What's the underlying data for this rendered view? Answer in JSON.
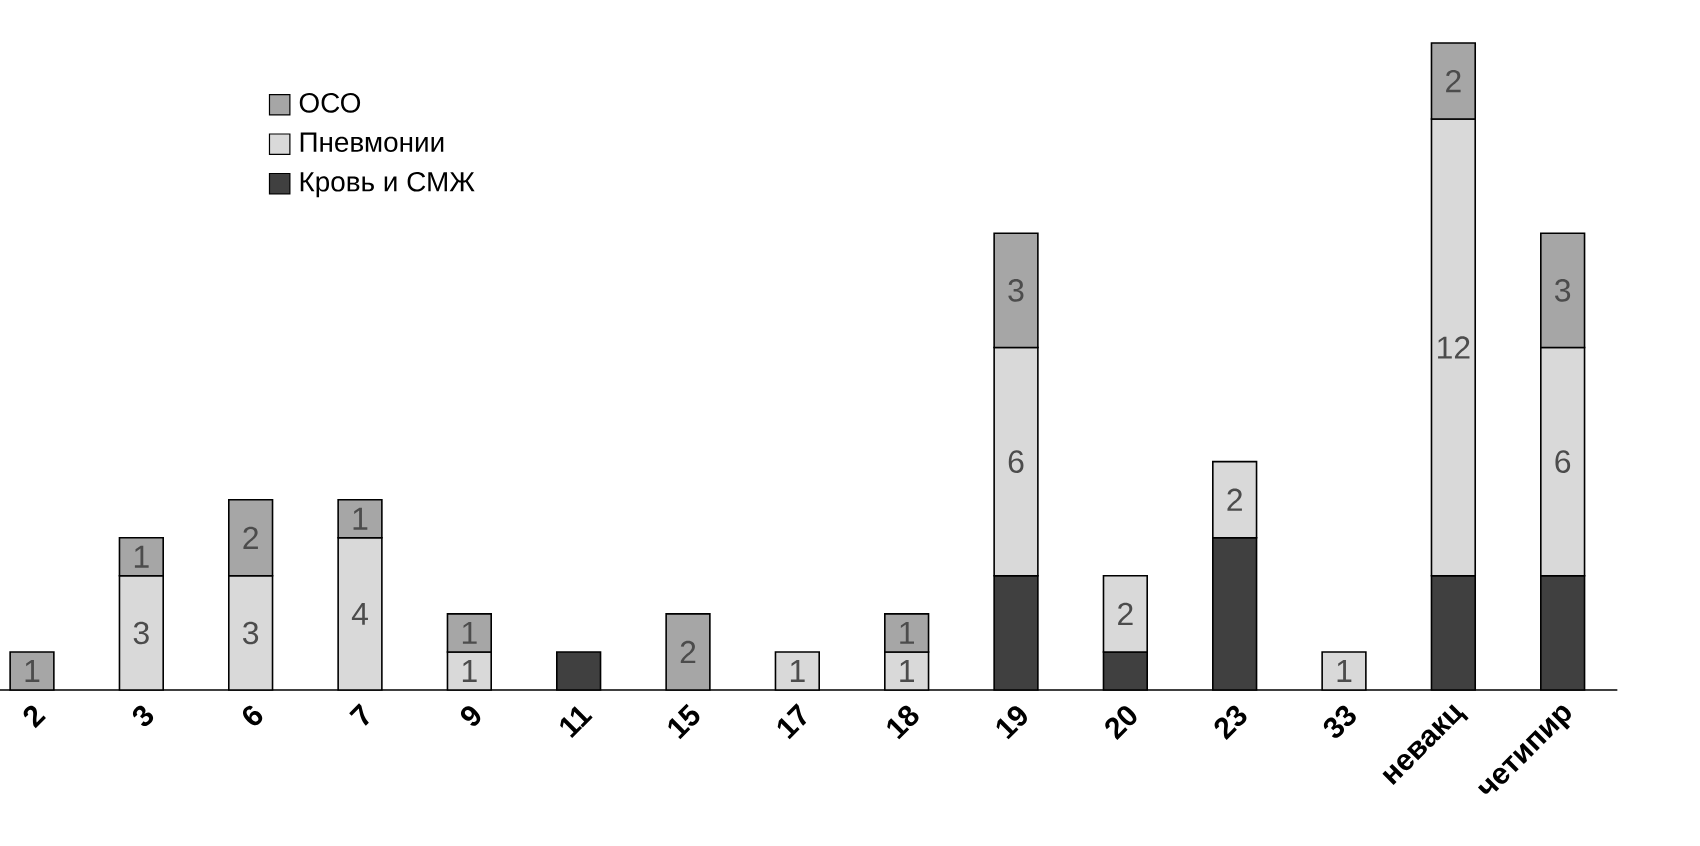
{
  "chart_data": {
    "type": "bar",
    "stacked": true,
    "legend": "top left",
    "categories": [
      "2",
      "3",
      "6",
      "7",
      "9",
      "11",
      "15",
      "17",
      "18",
      "19",
      "20",
      "23",
      "33",
      "невакц",
      "четипир"
    ],
    "series": [
      {
        "name": "Кровь и СМЖ",
        "color": "#404040",
        "values": [
          null,
          null,
          null,
          null,
          null,
          1,
          null,
          null,
          null,
          3,
          1,
          4,
          null,
          3,
          3
        ],
        "value_labels": [
          null,
          null,
          null,
          null,
          null,
          null,
          null,
          null,
          null,
          null,
          null,
          null,
          null,
          null,
          null
        ]
      },
      {
        "name": "Пневмонии",
        "color": "#d9d9d9",
        "values": [
          null,
          3,
          3,
          4,
          1,
          null,
          null,
          1,
          1,
          6,
          2,
          2,
          1,
          12,
          6
        ],
        "value_labels": [
          null,
          "3",
          "3",
          "4",
          "1",
          null,
          null,
          "1",
          "1",
          "6",
          "2",
          "2",
          "1",
          "12",
          "6"
        ]
      },
      {
        "name": "ОСО",
        "color": "#a6a6a6",
        "values": [
          1,
          1,
          2,
          1,
          1,
          null,
          2,
          null,
          1,
          3,
          null,
          null,
          null,
          2,
          3
        ],
        "value_labels": [
          "1",
          "1",
          "2",
          "1",
          "1",
          null,
          "2",
          null,
          "1",
          "3",
          null,
          null,
          null,
          "2",
          "3"
        ]
      }
    ]
  }
}
